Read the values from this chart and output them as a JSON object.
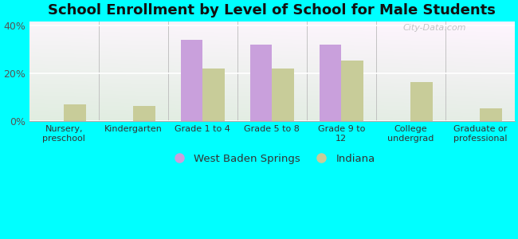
{
  "title": "School Enrollment by Level of School for Male Students",
  "categories": [
    "Nursery,\npreschool",
    "Kindergarten",
    "Grade 1 to 4",
    "Grade 5 to 8",
    "Grade 9 to\n12",
    "College\nundergrad",
    "Graduate or\nprofessional"
  ],
  "west_baden": [
    0,
    0,
    34,
    32,
    32,
    0,
    0
  ],
  "indiana": [
    7,
    6.5,
    22,
    22,
    25.5,
    16.5,
    5.5
  ],
  "bar_color_west": "#c9a0dc",
  "bar_color_indiana": "#c8cc99",
  "background_color": "#00ffff",
  "ylim": [
    0,
    42
  ],
  "yticks": [
    0,
    20,
    40
  ],
  "ytick_labels": [
    "0%",
    "20%",
    "40%"
  ],
  "legend_labels": [
    "West Baden Springs",
    "Indiana"
  ],
  "bar_width": 0.32,
  "title_fontsize": 13,
  "title_color": "#111111",
  "watermark": "City-Data.com"
}
